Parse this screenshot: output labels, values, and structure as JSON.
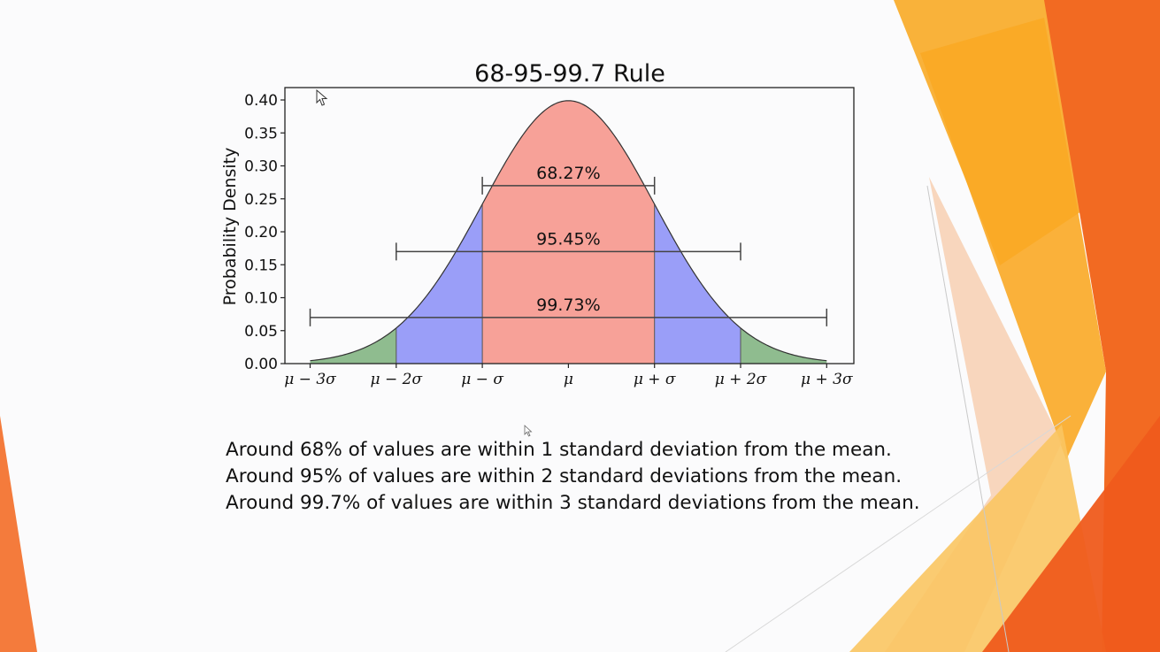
{
  "chart_data": {
    "type": "area",
    "title": "68-95-99.7 Rule",
    "xlabel": "",
    "ylabel": "Probability Density",
    "xlim": [
      -3,
      3
    ],
    "ylim": [
      0.0,
      0.4
    ],
    "yticks": [
      0.0,
      0.05,
      0.1,
      0.15,
      0.2,
      0.25,
      0.3,
      0.35,
      0.4
    ],
    "ytick_labels": [
      "0.00",
      "0.05",
      "0.10",
      "0.15",
      "0.20",
      "0.25",
      "0.30",
      "0.35",
      "0.40"
    ],
    "xticks": [
      -3,
      -2,
      -1,
      0,
      1,
      2,
      3
    ],
    "xtick_labels": [
      "μ − 3σ",
      "μ − 2σ",
      "μ − σ",
      "μ",
      "μ + σ",
      "μ + 2σ",
      "μ + 3σ"
    ],
    "curve": "normal density, mean 0, standard deviation 1",
    "regions": [
      {
        "from": -3,
        "to": -2,
        "color": "#8fbc8f"
      },
      {
        "from": -2,
        "to": -1,
        "color": "#9a9ef8"
      },
      {
        "from": -1,
        "to": 1,
        "color": "#f7a198"
      },
      {
        "from": 1,
        "to": 2,
        "color": "#9a9ef8"
      },
      {
        "from": 2,
        "to": 3,
        "color": "#8fbc8f"
      }
    ],
    "intervals": [
      {
        "label": "68.27%",
        "from": -1,
        "to": 1,
        "y": 0.27
      },
      {
        "label": "95.45%",
        "from": -2,
        "to": 2,
        "y": 0.17
      },
      {
        "label": "99.73%",
        "from": -3,
        "to": 3,
        "y": 0.07
      }
    ],
    "grid": false,
    "legend": "none"
  },
  "caption": {
    "line1": "Around 68% of values are within 1 standard deviation from the mean.",
    "line2": "Around 95% of values are within 2 standard deviations from the mean.",
    "line3": "Around 99.7% of values are within 3 standard deviations from the mean."
  },
  "theme": {
    "accent_orange": "#f26a22",
    "accent_amber": "#f9a825"
  }
}
